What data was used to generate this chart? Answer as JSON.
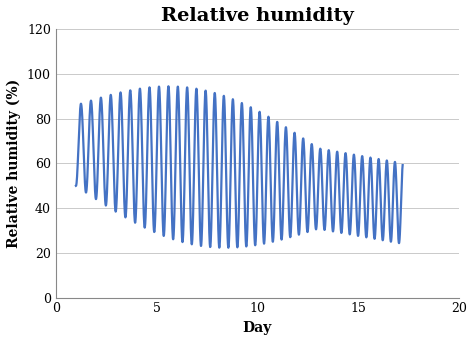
{
  "title": "Relative humidity",
  "xlabel": "Day",
  "ylabel": "Relative humidity (%)",
  "xlim": [
    0,
    20
  ],
  "ylim": [
    0,
    120
  ],
  "xticks": [
    0,
    5,
    10,
    15,
    20
  ],
  "yticks": [
    0,
    20,
    40,
    60,
    80,
    100,
    120
  ],
  "line_color": "#4472C4",
  "line_width": 1.6,
  "background_color": "#ffffff",
  "title_fontsize": 14,
  "label_fontsize": 10,
  "tick_fontsize": 9
}
